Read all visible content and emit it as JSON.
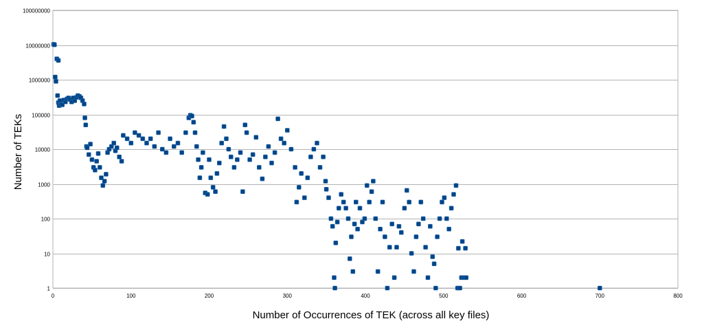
{
  "chart_data": {
    "type": "scatter",
    "title": "",
    "xlabel": "Number of Occurrences of TEK (across all key files)",
    "ylabel": "Number of TEKs",
    "xlim": [
      0,
      800
    ],
    "ylim": [
      1,
      100000000
    ],
    "yscale": "log",
    "grid": "horizontal",
    "legend": "none",
    "marker_color": "#004586",
    "x_ticks": [
      "0",
      "100",
      "200",
      "300",
      "400",
      "500",
      "600",
      "700",
      "800"
    ],
    "y_ticks": [
      "1",
      "10",
      "100",
      "1000",
      "10000",
      "100000",
      "1000000",
      "10000000",
      "100000000"
    ],
    "series": [
      {
        "points": [
          [
            1,
            10500000
          ],
          [
            2,
            10200000
          ],
          [
            3,
            1200000
          ],
          [
            4,
            900000
          ],
          [
            5,
            4000000
          ],
          [
            7,
            3600000
          ],
          [
            6,
            350000
          ],
          [
            7,
            220000
          ],
          [
            8,
            180000
          ],
          [
            9,
            250000
          ],
          [
            10,
            200000
          ],
          [
            12,
            190000
          ],
          [
            14,
            260000
          ],
          [
            16,
            230000
          ],
          [
            18,
            280000
          ],
          [
            20,
            300000
          ],
          [
            22,
            270000
          ],
          [
            24,
            230000
          ],
          [
            26,
            300000
          ],
          [
            28,
            250000
          ],
          [
            30,
            310000
          ],
          [
            32,
            350000
          ],
          [
            34,
            330000
          ],
          [
            36,
            300000
          ],
          [
            38,
            250000
          ],
          [
            40,
            200000
          ],
          [
            41,
            80000
          ],
          [
            42,
            50000
          ],
          [
            43,
            12000
          ],
          [
            44,
            11000
          ],
          [
            46,
            7000
          ],
          [
            48,
            14000
          ],
          [
            50,
            5000
          ],
          [
            52,
            3000
          ],
          [
            54,
            2500
          ],
          [
            56,
            4500
          ],
          [
            58,
            7500
          ],
          [
            60,
            3000
          ],
          [
            62,
            1500
          ],
          [
            64,
            900
          ],
          [
            66,
            1200
          ],
          [
            68,
            1900
          ],
          [
            70,
            8000
          ],
          [
            72,
            10000
          ],
          [
            75,
            12000
          ],
          [
            78,
            15000
          ],
          [
            80,
            9000
          ],
          [
            82,
            11000
          ],
          [
            85,
            6000
          ],
          [
            88,
            4500
          ],
          [
            90,
            25000
          ],
          [
            95,
            20000
          ],
          [
            100,
            15000
          ],
          [
            105,
            30000
          ],
          [
            110,
            25000
          ],
          [
            115,
            20000
          ],
          [
            120,
            15000
          ],
          [
            125,
            20000
          ],
          [
            130,
            12000
          ],
          [
            135,
            30000
          ],
          [
            140,
            10000
          ],
          [
            145,
            8000
          ],
          [
            150,
            20000
          ],
          [
            155,
            12000
          ],
          [
            160,
            15000
          ],
          [
            165,
            8000
          ],
          [
            170,
            30000
          ],
          [
            174,
            80000
          ],
          [
            176,
            95000
          ],
          [
            178,
            90000
          ],
          [
            180,
            60000
          ],
          [
            182,
            30000
          ],
          [
            184,
            12000
          ],
          [
            186,
            5000
          ],
          [
            188,
            1500
          ],
          [
            190,
            3000
          ],
          [
            192,
            8000
          ],
          [
            195,
            550
          ],
          [
            198,
            500
          ],
          [
            200,
            5000
          ],
          [
            202,
            1500
          ],
          [
            205,
            800
          ],
          [
            208,
            600
          ],
          [
            210,
            2000
          ],
          [
            213,
            4000
          ],
          [
            216,
            15000
          ],
          [
            219,
            45000
          ],
          [
            222,
            20000
          ],
          [
            225,
            10000
          ],
          [
            228,
            6000
          ],
          [
            232,
            3000
          ],
          [
            236,
            5000
          ],
          [
            240,
            8000
          ],
          [
            243,
            600
          ],
          [
            246,
            50000
          ],
          [
            248,
            30000
          ],
          [
            252,
            5000
          ],
          [
            256,
            7000
          ],
          [
            260,
            22000
          ],
          [
            264,
            3000
          ],
          [
            268,
            1400
          ],
          [
            272,
            6000
          ],
          [
            276,
            12000
          ],
          [
            280,
            4000
          ],
          [
            284,
            8000
          ],
          [
            288,
            75000
          ],
          [
            292,
            20000
          ],
          [
            296,
            15000
          ],
          [
            300,
            35000
          ],
          [
            305,
            10000
          ],
          [
            310,
            3000
          ],
          [
            312,
            300
          ],
          [
            315,
            800
          ],
          [
            318,
            2000
          ],
          [
            322,
            400
          ],
          [
            326,
            1500
          ],
          [
            330,
            6000
          ],
          [
            334,
            10000
          ],
          [
            338,
            15000
          ],
          [
            342,
            3000
          ],
          [
            346,
            6000
          ],
          [
            349,
            1200
          ],
          [
            350,
            700
          ],
          [
            353,
            400
          ],
          [
            356,
            100
          ],
          [
            358,
            60
          ],
          [
            360,
            2
          ],
          [
            361,
            1
          ],
          [
            362,
            20
          ],
          [
            364,
            80
          ],
          [
            366,
            200
          ],
          [
            369,
            500
          ],
          [
            372,
            300
          ],
          [
            375,
            200
          ],
          [
            378,
            100
          ],
          [
            380,
            7
          ],
          [
            382,
            30
          ],
          [
            384,
            3
          ],
          [
            386,
            70
          ],
          [
            388,
            300
          ],
          [
            390,
            50
          ],
          [
            393,
            200
          ],
          [
            396,
            80
          ],
          [
            399,
            100
          ],
          [
            402,
            900
          ],
          [
            405,
            300
          ],
          [
            408,
            600
          ],
          [
            410,
            1200
          ],
          [
            413,
            100
          ],
          [
            416,
            3
          ],
          [
            419,
            50
          ],
          [
            422,
            300
          ],
          [
            425,
            30
          ],
          [
            428,
            1
          ],
          [
            431,
            15
          ],
          [
            434,
            70
          ],
          [
            437,
            2
          ],
          [
            440,
            15
          ],
          [
            443,
            60
          ],
          [
            446,
            40
          ],
          [
            450,
            200
          ],
          [
            453,
            650
          ],
          [
            456,
            300
          ],
          [
            459,
            10
          ],
          [
            462,
            3
          ],
          [
            465,
            30
          ],
          [
            468,
            70
          ],
          [
            471,
            300
          ],
          [
            474,
            100
          ],
          [
            477,
            15
          ],
          [
            480,
            2
          ],
          [
            483,
            60
          ],
          [
            486,
            8
          ],
          [
            488,
            5
          ],
          [
            490,
            1
          ],
          [
            492,
            30
          ],
          [
            495,
            100
          ],
          [
            498,
            300
          ],
          [
            501,
            400
          ],
          [
            504,
            100
          ],
          [
            507,
            50
          ],
          [
            510,
            200
          ],
          [
            513,
            500
          ],
          [
            516,
            900
          ],
          [
            518,
            1
          ],
          [
            519,
            14
          ],
          [
            521,
            1
          ],
          [
            523,
            2
          ],
          [
            524,
            22
          ],
          [
            526,
            2
          ],
          [
            528,
            14
          ],
          [
            529,
            2
          ],
          [
            700,
            1
          ]
        ]
      }
    ]
  }
}
